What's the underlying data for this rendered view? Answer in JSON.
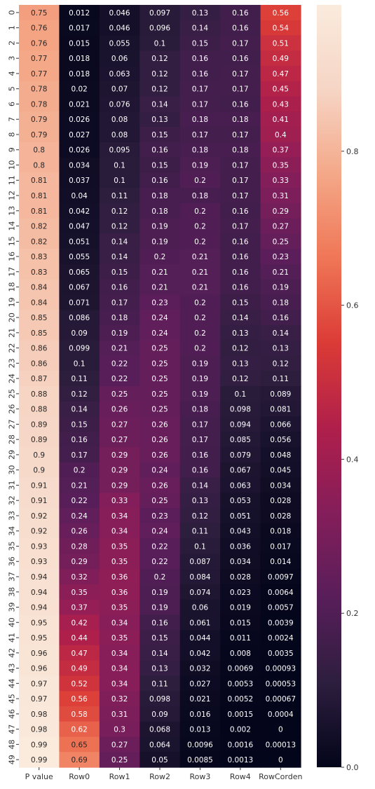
{
  "chart_data": {
    "type": "heatmap",
    "title": "",
    "xlabel": "",
    "ylabel": "",
    "x": [
      "P value",
      "Row0",
      "Row1",
      "Row2",
      "Row3",
      "Row4",
      "RowCorden"
    ],
    "y": [
      "0",
      "1",
      "2",
      "3",
      "4",
      "5",
      "6",
      "7",
      "8",
      "9",
      "10",
      "11",
      "12",
      "13",
      "14",
      "15",
      "16",
      "17",
      "18",
      "19",
      "20",
      "21",
      "22",
      "23",
      "24",
      "25",
      "26",
      "27",
      "28",
      "29",
      "30",
      "31",
      "32",
      "33",
      "34",
      "35",
      "36",
      "37",
      "38",
      "39",
      "40",
      "41",
      "42",
      "43",
      "44",
      "45",
      "46",
      "47",
      "48",
      "49"
    ],
    "values": [
      [
        0.75,
        0.012,
        0.046,
        0.097,
        0.13,
        0.16,
        0.56
      ],
      [
        0.76,
        0.017,
        0.046,
        0.096,
        0.14,
        0.16,
        0.54
      ],
      [
        0.76,
        0.015,
        0.055,
        0.1,
        0.15,
        0.17,
        0.51
      ],
      [
        0.77,
        0.018,
        0.06,
        0.12,
        0.16,
        0.16,
        0.49
      ],
      [
        0.77,
        0.018,
        0.063,
        0.12,
        0.16,
        0.17,
        0.47
      ],
      [
        0.78,
        0.02,
        0.07,
        0.12,
        0.17,
        0.17,
        0.45
      ],
      [
        0.78,
        0.021,
        0.076,
        0.14,
        0.17,
        0.16,
        0.43
      ],
      [
        0.79,
        0.026,
        0.08,
        0.13,
        0.18,
        0.18,
        0.41
      ],
      [
        0.79,
        0.027,
        0.08,
        0.15,
        0.17,
        0.17,
        0.4
      ],
      [
        0.8,
        0.026,
        0.095,
        0.16,
        0.18,
        0.18,
        0.37
      ],
      [
        0.8,
        0.034,
        0.1,
        0.15,
        0.19,
        0.17,
        0.35
      ],
      [
        0.81,
        0.037,
        0.1,
        0.16,
        0.2,
        0.17,
        0.33
      ],
      [
        0.81,
        0.04,
        0.11,
        0.18,
        0.18,
        0.17,
        0.31
      ],
      [
        0.81,
        0.042,
        0.12,
        0.18,
        0.2,
        0.16,
        0.29
      ],
      [
        0.82,
        0.047,
        0.12,
        0.19,
        0.2,
        0.17,
        0.27
      ],
      [
        0.82,
        0.051,
        0.14,
        0.19,
        0.2,
        0.16,
        0.25
      ],
      [
        0.83,
        0.055,
        0.14,
        0.2,
        0.21,
        0.16,
        0.23
      ],
      [
        0.83,
        0.065,
        0.15,
        0.21,
        0.21,
        0.16,
        0.21
      ],
      [
        0.84,
        0.067,
        0.16,
        0.21,
        0.21,
        0.16,
        0.19
      ],
      [
        0.84,
        0.071,
        0.17,
        0.23,
        0.2,
        0.15,
        0.18
      ],
      [
        0.85,
        0.086,
        0.18,
        0.24,
        0.2,
        0.14,
        0.16
      ],
      [
        0.85,
        0.09,
        0.19,
        0.24,
        0.2,
        0.13,
        0.14
      ],
      [
        0.86,
        0.099,
        0.21,
        0.25,
        0.2,
        0.12,
        0.13
      ],
      [
        0.86,
        0.1,
        0.22,
        0.25,
        0.19,
        0.13,
        0.12
      ],
      [
        0.87,
        0.11,
        0.22,
        0.25,
        0.19,
        0.12,
        0.11
      ],
      [
        0.88,
        0.12,
        0.25,
        0.25,
        0.19,
        0.1,
        0.089
      ],
      [
        0.88,
        0.14,
        0.26,
        0.25,
        0.18,
        0.098,
        0.081
      ],
      [
        0.89,
        0.15,
        0.27,
        0.26,
        0.17,
        0.094,
        0.066
      ],
      [
        0.89,
        0.16,
        0.27,
        0.26,
        0.17,
        0.085,
        0.056
      ],
      [
        0.9,
        0.17,
        0.29,
        0.26,
        0.16,
        0.079,
        0.048
      ],
      [
        0.9,
        0.2,
        0.29,
        0.24,
        0.16,
        0.067,
        0.045
      ],
      [
        0.91,
        0.21,
        0.29,
        0.26,
        0.14,
        0.063,
        0.034
      ],
      [
        0.91,
        0.22,
        0.33,
        0.25,
        0.13,
        0.053,
        0.028
      ],
      [
        0.92,
        0.24,
        0.34,
        0.23,
        0.12,
        0.051,
        0.028
      ],
      [
        0.92,
        0.26,
        0.34,
        0.24,
        0.11,
        0.043,
        0.018
      ],
      [
        0.93,
        0.28,
        0.35,
        0.22,
        0.1,
        0.036,
        0.017
      ],
      [
        0.93,
        0.29,
        0.35,
        0.22,
        0.087,
        0.034,
        0.014
      ],
      [
        0.94,
        0.32,
        0.36,
        0.2,
        0.084,
        0.028,
        0.0097
      ],
      [
        0.94,
        0.35,
        0.36,
        0.19,
        0.074,
        0.023,
        0.0064
      ],
      [
        0.94,
        0.37,
        0.35,
        0.19,
        0.06,
        0.019,
        0.0057
      ],
      [
        0.95,
        0.42,
        0.34,
        0.16,
        0.061,
        0.015,
        0.0039
      ],
      [
        0.95,
        0.44,
        0.35,
        0.15,
        0.044,
        0.011,
        0.0024
      ],
      [
        0.96,
        0.47,
        0.34,
        0.14,
        0.042,
        0.008,
        0.0035
      ],
      [
        0.96,
        0.49,
        0.34,
        0.13,
        0.032,
        0.0069,
        0.00093
      ],
      [
        0.97,
        0.52,
        0.34,
        0.11,
        0.027,
        0.0053,
        0.00053
      ],
      [
        0.97,
        0.56,
        0.32,
        0.098,
        0.021,
        0.0052,
        0.00067
      ],
      [
        0.98,
        0.58,
        0.31,
        0.09,
        0.016,
        0.0015,
        0.0004
      ],
      [
        0.98,
        0.62,
        0.3,
        0.068,
        0.013,
        0.002,
        0
      ],
      [
        0.99,
        0.65,
        0.27,
        0.064,
        0.0096,
        0.0016,
        0.00013
      ],
      [
        0.99,
        0.69,
        0.25,
        0.05,
        0.0085,
        0.0013,
        0
      ]
    ],
    "colorbar": {
      "ticks": [
        "0.0",
        "0.2",
        "0.4",
        "0.6",
        "0.8"
      ],
      "tick_values": [
        0,
        0.2,
        0.4,
        0.6,
        0.8
      ],
      "range": [
        0,
        0.99
      ]
    },
    "colormap": [
      "#03051a",
      "#2d1e3e",
      "#581e5a",
      "#841e5a",
      "#af1f4b",
      "#db3b36",
      "#ef7656",
      "#f4a888",
      "#f6d5c5",
      "#faebdd"
    ]
  }
}
